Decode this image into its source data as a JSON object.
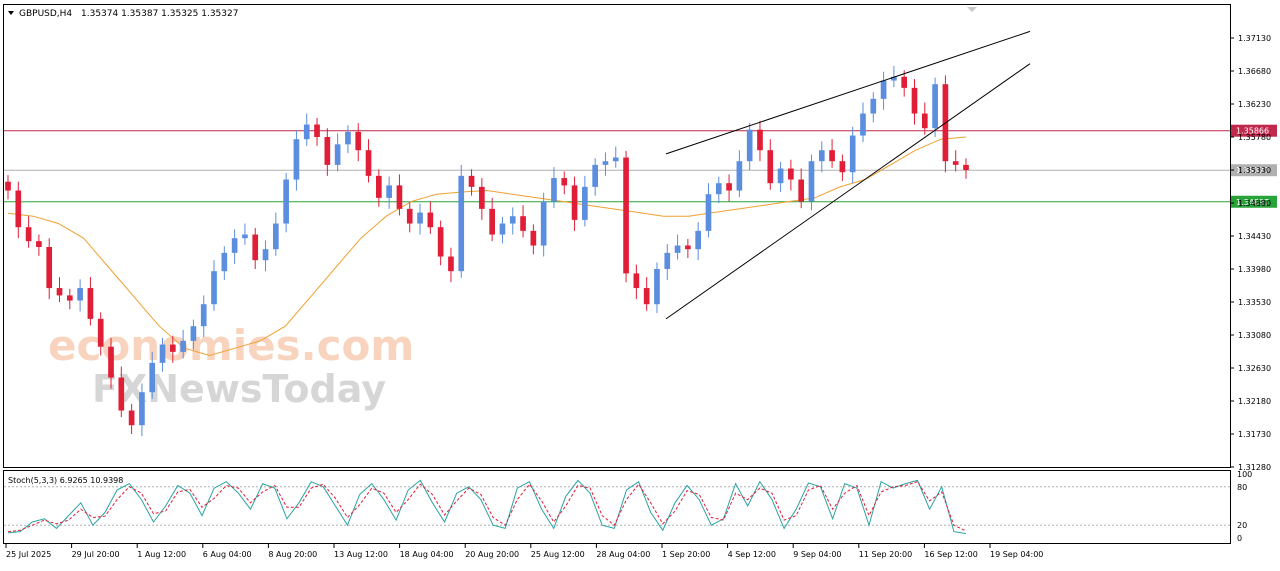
{
  "header": {
    "symbol": "GBPUSD,H4",
    "ohlc": "1.35374 1.35387 1.35325 1.35327"
  },
  "watermark": {
    "line1": "economies.com",
    "line2": "FXNewsToday"
  },
  "chart_data": [
    {
      "type": "candlestick",
      "title": "GBPUSD,H4",
      "ohlc_last": {
        "open": 1.35374,
        "high": 1.35387,
        "low": 1.35325,
        "close": 1.35327
      },
      "ylim": [
        1.3128,
        1.3758
      ],
      "y_ticks": [
        "1.37130",
        "1.36680",
        "1.36230",
        "1.35780",
        "1.35330",
        "1.34880",
        "1.34430",
        "1.33980",
        "1.33530",
        "1.33080",
        "1.32630",
        "1.32180",
        "1.31730",
        "1.31280"
      ],
      "x_ticks": [
        "25 Jul 2025",
        "29 Jul 20:00",
        "1 Aug 12:00",
        "6 Aug 04:00",
        "8 Aug 20:00",
        "13 Aug 12:00",
        "18 Aug 04:00",
        "20 Aug 20:00",
        "25 Aug 12:00",
        "28 Aug 04:00",
        "1 Sep 20:00",
        "4 Sep 12:00",
        "9 Sep 04:00",
        "11 Sep 20:00",
        "16 Sep 12:00",
        "19 Sep 04:00"
      ],
      "horizontal_levels": [
        {
          "value": 1.35866,
          "label": "1.35866",
          "color": "#c0284c"
        },
        {
          "value": 1.35327,
          "label": "1.35327",
          "color": "#b0b0b0"
        },
        {
          "value": 1.34897,
          "label": "1.34897",
          "color": "#27a33a"
        }
      ],
      "colors": {
        "bull": "#5b8ede",
        "bear": "#e01e37",
        "moving_average": "#f0a030",
        "trendline": "#000000"
      },
      "series": [
        {
          "name": "close",
          "values": [
            1.3505,
            1.3455,
            1.3436,
            1.3428,
            1.3372,
            1.3362,
            1.3355,
            1.3372,
            1.333,
            1.3292,
            1.325,
            1.3205,
            1.3185,
            1.323,
            1.327,
            1.3295,
            1.3285,
            1.33,
            1.332,
            1.335,
            1.3395,
            1.342,
            1.344,
            1.3445,
            1.341,
            1.3425,
            1.346,
            1.352,
            1.3575,
            1.3595,
            1.3578,
            1.354,
            1.3568,
            1.3585,
            1.356,
            1.3525,
            1.3495,
            1.3512,
            1.348,
            1.346,
            1.3475,
            1.3455,
            1.3415,
            1.3395,
            1.3525,
            1.351,
            1.348,
            1.3445,
            1.346,
            1.347,
            1.345,
            1.343,
            1.349,
            1.3522,
            1.3512,
            1.3465,
            1.351,
            1.354,
            1.3545,
            1.355,
            1.3392,
            1.3372,
            1.335,
            1.3398,
            1.342,
            1.343,
            1.3425,
            1.345,
            1.35,
            1.3515,
            1.3505,
            1.3545,
            1.3588,
            1.356,
            1.3515,
            1.3535,
            1.352,
            1.349,
            1.3545,
            1.356,
            1.3545,
            1.353,
            1.358,
            1.361,
            1.363,
            1.3655,
            1.366,
            1.3645,
            1.361,
            1.359,
            1.365,
            1.3545,
            1.354,
            1.3533
          ]
        },
        {
          "name": "moving_average",
          "values": [
            1.3474,
            1.347,
            1.346,
            1.344,
            1.34,
            1.336,
            1.332,
            1.329,
            1.328,
            1.329,
            1.33,
            1.332,
            1.336,
            1.34,
            1.344,
            1.347,
            1.349,
            1.35,
            1.3503,
            1.3505,
            1.35,
            1.3495,
            1.349,
            1.3485,
            1.348,
            1.3475,
            1.347,
            1.347,
            1.3475,
            1.348,
            1.3485,
            1.349,
            1.3495,
            1.351,
            1.352,
            1.354,
            1.356,
            1.3575,
            1.3578
          ]
        }
      ],
      "trendlines": [
        {
          "name": "rising-wedge-upper",
          "from": [
            "1 Sep 20:00",
            1.3555
          ],
          "to": [
            "19 Sep 04:00",
            1.3722
          ]
        },
        {
          "name": "rising-wedge-lower",
          "from": [
            "1 Sep 20:00",
            1.333
          ],
          "to": [
            "19 Sep 04:00",
            1.3678
          ]
        }
      ]
    },
    {
      "type": "line",
      "title": "Stoch(5,3,3) 6.9265 10.9398",
      "ylim": [
        0,
        100
      ],
      "y_ticks": [
        "100",
        "80",
        "20",
        "0"
      ],
      "levels": [
        80,
        20
      ],
      "series": [
        {
          "name": "main",
          "values": [
            8,
            10,
            25,
            30,
            15,
            35,
            55,
            20,
            40,
            75,
            85,
            60,
            25,
            50,
            82,
            70,
            35,
            78,
            88,
            70,
            45,
            85,
            78,
            30,
            55,
            88,
            80,
            50,
            20,
            68,
            85,
            60,
            28,
            75,
            90,
            55,
            25,
            70,
            80,
            60,
            20,
            15,
            78,
            88,
            45,
            15,
            65,
            90,
            70,
            20,
            15,
            75,
            88,
            40,
            12,
            55,
            82,
            60,
            20,
            30,
            85,
            50,
            88,
            60,
            15,
            45,
            86,
            80,
            30,
            85,
            78,
            20,
            88,
            78,
            85,
            90,
            45,
            80,
            10,
            6.9265
          ]
        },
        {
          "name": "signal",
          "values": [
            10,
            12,
            20,
            28,
            22,
            28,
            45,
            32,
            34,
            60,
            80,
            70,
            38,
            42,
            72,
            76,
            48,
            62,
            82,
            78,
            55,
            72,
            82,
            48,
            48,
            78,
            84,
            62,
            32,
            52,
            78,
            70,
            40,
            60,
            84,
            68,
            36,
            58,
            78,
            68,
            32,
            20,
            60,
            84,
            58,
            25,
            50,
            82,
            78,
            35,
            20,
            60,
            84,
            55,
            22,
            42,
            74,
            68,
            32,
            28,
            70,
            60,
            78,
            70,
            28,
            35,
            75,
            82,
            45,
            70,
            82,
            35,
            72,
            80,
            82,
            88,
            58,
            72,
            20,
            10.9398
          ]
        }
      ]
    }
  ]
}
